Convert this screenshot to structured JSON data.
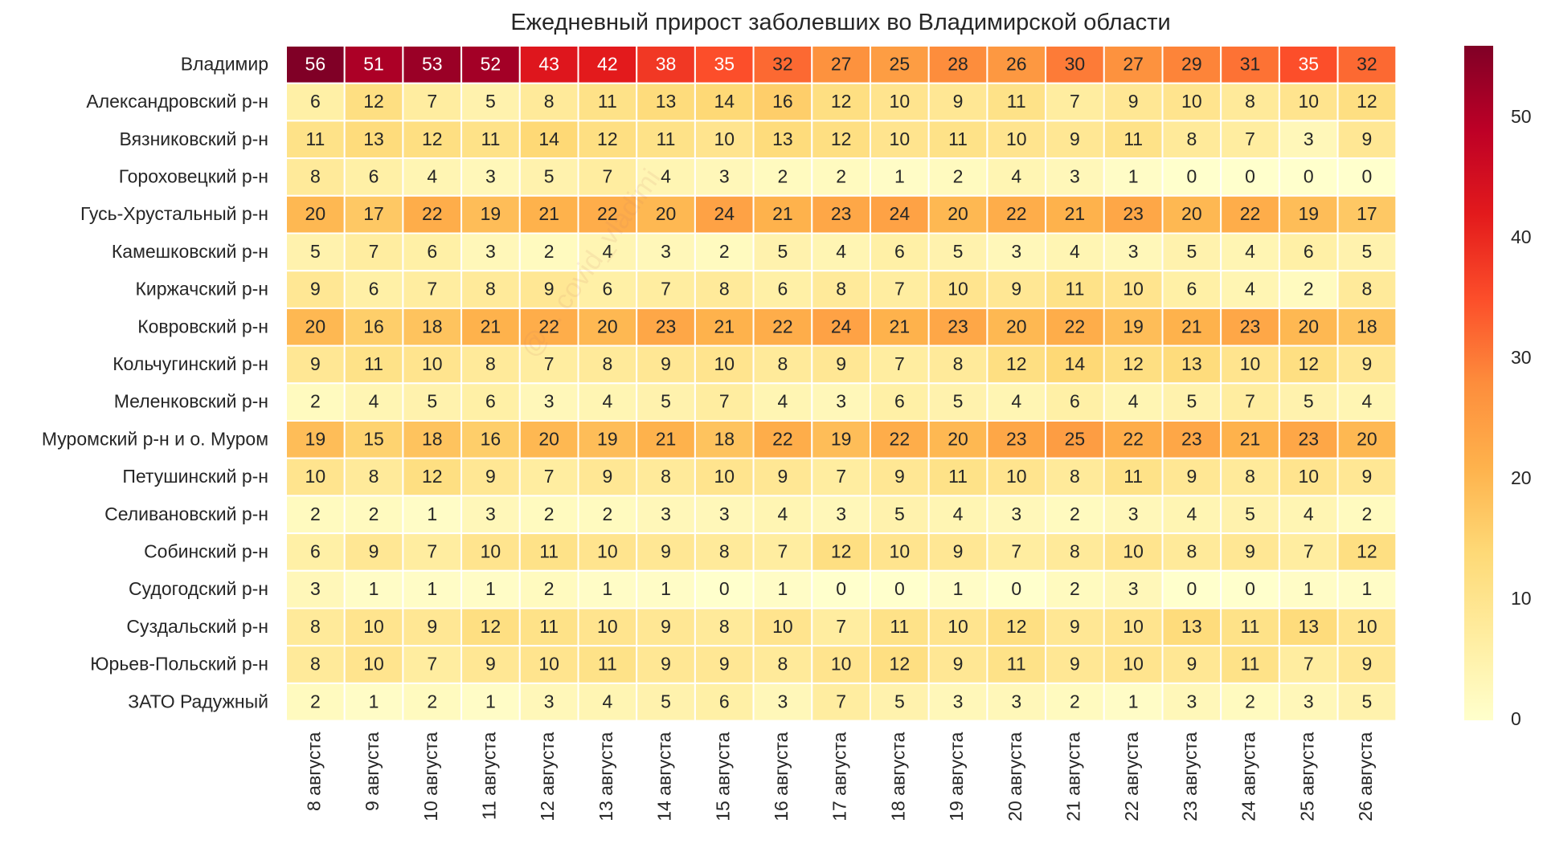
{
  "colors": {
    "scale": [
      "#ffffcc",
      "#ffeda0",
      "#fed976",
      "#feb24c",
      "#fd8d3c",
      "#fc4e2a",
      "#e31a1c",
      "#bd0026",
      "#800026"
    ],
    "cell_border": "#ffffff",
    "dark_text": "#262626",
    "light_text": "#ffffff"
  },
  "watermark_text": "@... covid_vladimi",
  "chart_data": {
    "type": "heatmap",
    "title": "Ежедневный прирост заболевших во Владимирской области",
    "xlabel": "",
    "ylabel": "",
    "colorbar": {
      "min": 0,
      "max": 56,
      "ticks": [
        0,
        10,
        20,
        30,
        40,
        50
      ],
      "placement": "right"
    },
    "x": [
      "8 августа",
      "9 августа",
      "10 августа",
      "11 августа",
      "12 августа",
      "13 августа",
      "14 августа",
      "15 августа",
      "16 августа",
      "17 августа",
      "18 августа",
      "19 августа",
      "20 августа",
      "21 августа",
      "22 августа",
      "23 августа",
      "24 августа",
      "25 августа",
      "26 августа"
    ],
    "y": [
      "Владимир",
      "Александровский р-н",
      "Вязниковский р-н",
      "Гороховецкий р-н",
      "Гусь-Хрустальный р-н",
      "Камешковский р-н",
      "Киржачский р-н",
      "Ковровский р-н",
      "Кольчугинский р-н",
      "Меленковский р-н",
      "Муромский р-н и о. Муром",
      "Петушинский р-н",
      "Селивановский р-н",
      "Собинский р-н",
      "Судогодский р-н",
      "Суздальский р-н",
      "Юрьев-Польский р-н",
      "ЗАТО Радужный"
    ],
    "values": [
      [
        56,
        51,
        53,
        52,
        43,
        42,
        38,
        35,
        32,
        27,
        25,
        28,
        26,
        30,
        27,
        29,
        31,
        35,
        32
      ],
      [
        6,
        12,
        7,
        5,
        8,
        11,
        13,
        14,
        16,
        12,
        10,
        9,
        11,
        7,
        9,
        10,
        8,
        10,
        12
      ],
      [
        11,
        13,
        12,
        11,
        14,
        12,
        11,
        10,
        13,
        12,
        10,
        11,
        10,
        9,
        11,
        8,
        7,
        3,
        9
      ],
      [
        8,
        6,
        4,
        3,
        5,
        7,
        4,
        3,
        2,
        2,
        1,
        2,
        4,
        3,
        1,
        0,
        0,
        0,
        0
      ],
      [
        20,
        17,
        22,
        19,
        21,
        22,
        20,
        24,
        21,
        23,
        24,
        20,
        22,
        21,
        23,
        20,
        22,
        19,
        17
      ],
      [
        5,
        7,
        6,
        3,
        2,
        4,
        3,
        2,
        5,
        4,
        6,
        5,
        3,
        4,
        3,
        5,
        4,
        6,
        5
      ],
      [
        9,
        6,
        7,
        8,
        9,
        6,
        7,
        8,
        6,
        8,
        7,
        10,
        9,
        11,
        10,
        6,
        4,
        2,
        8
      ],
      [
        20,
        16,
        18,
        21,
        22,
        20,
        23,
        21,
        22,
        24,
        21,
        23,
        20,
        22,
        19,
        21,
        23,
        20,
        18
      ],
      [
        9,
        11,
        10,
        8,
        7,
        8,
        9,
        10,
        8,
        9,
        7,
        8,
        12,
        14,
        12,
        13,
        10,
        12,
        9
      ],
      [
        2,
        4,
        5,
        6,
        3,
        4,
        5,
        7,
        4,
        3,
        6,
        5,
        4,
        6,
        4,
        5,
        7,
        5,
        4
      ],
      [
        19,
        15,
        18,
        16,
        20,
        19,
        21,
        18,
        22,
        19,
        22,
        20,
        23,
        25,
        22,
        23,
        21,
        23,
        20
      ],
      [
        10,
        8,
        12,
        9,
        7,
        9,
        8,
        10,
        9,
        7,
        9,
        11,
        10,
        8,
        11,
        9,
        8,
        10,
        9
      ],
      [
        2,
        2,
        1,
        3,
        2,
        2,
        3,
        3,
        4,
        3,
        5,
        4,
        3,
        2,
        3,
        4,
        5,
        4,
        2
      ],
      [
        6,
        9,
        7,
        10,
        11,
        10,
        9,
        8,
        7,
        12,
        10,
        9,
        7,
        8,
        10,
        8,
        9,
        7,
        12
      ],
      [
        3,
        1,
        1,
        1,
        2,
        1,
        1,
        0,
        1,
        0,
        0,
        1,
        0,
        2,
        3,
        0,
        0,
        1,
        1
      ],
      [
        8,
        10,
        9,
        12,
        11,
        10,
        9,
        8,
        10,
        7,
        11,
        10,
        12,
        9,
        10,
        13,
        11,
        13,
        10
      ],
      [
        8,
        10,
        7,
        9,
        10,
        11,
        9,
        9,
        8,
        10,
        12,
        9,
        11,
        9,
        10,
        9,
        11,
        7,
        9
      ],
      [
        2,
        1,
        2,
        1,
        3,
        4,
        5,
        6,
        3,
        7,
        5,
        3,
        3,
        2,
        1,
        3,
        2,
        3,
        5
      ]
    ]
  }
}
